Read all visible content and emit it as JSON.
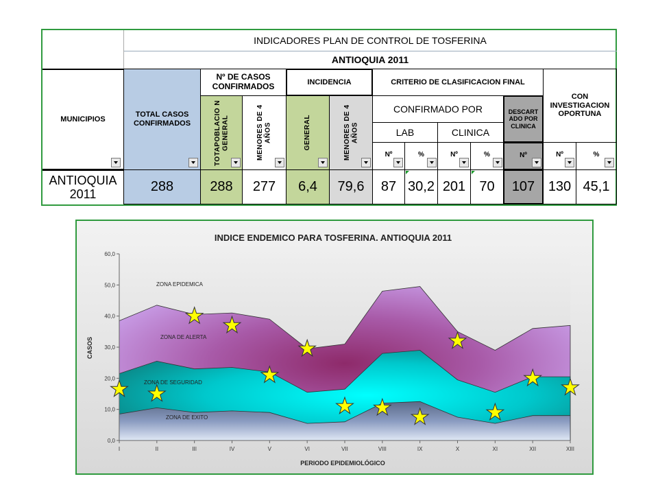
{
  "table": {
    "title": "INDICADORES PLAN  DE CONTROL  DE TOSFERINA",
    "subtitle": "ANTIOQUIA 2011",
    "headers": {
      "municipios": "MUNICIPIOS",
      "total": "TOTAL CASOS CONFIRMADOS",
      "num_casos": "Nº DE CASOS CONFIRMADOS",
      "incidencia": "INCIDENCIA",
      "criterio": "CRITERIO DE CLASIFICACION  FINAL",
      "con_invest": "CON INVESTIGACION OPORTUNA",
      "confirmado_por": "CONFIRMADO POR",
      "descartado": "DESCART ADO POR CLINICA",
      "lab": "LAB",
      "clinica": "CLINICA",
      "totapoblacion": "TOTAPOBLACIO N GENERAL",
      "menores_a": "MENORES DE 4 AÑOS",
      "general": "GENERAL",
      "menores_b": "MENORES DE 4 AÑOS",
      "n": "Nº",
      "pct": "%"
    },
    "row": {
      "municipio": "ANTIOQUIA 2011",
      "total": "288",
      "totapoblacion": "288",
      "menores": "277",
      "inc_general": "6,4",
      "inc_menores": "79,6",
      "lab_n": "87",
      "lab_pct": "30,2",
      "clin_n": "201",
      "clin_pct": "70",
      "descartado_n": "107",
      "invest_n": "130",
      "invest_pct": "45,1"
    },
    "colors": {
      "blue": "#b8cce4",
      "green": "#c3d69b",
      "gray": "#d9d9d9",
      "darkgray": "#a6a6a6"
    }
  },
  "chart_data": {
    "type": "area",
    "title": "INDICE ENDEMICO PARA TOSFERINA.  ANTIOQUIA 2011",
    "xlabel": "PERIODO EPIDEMIOLÓGICO",
    "ylabel": "CASOS",
    "ylim": [
      0,
      60
    ],
    "yticks": [
      "0,0",
      "10,0",
      "20,0",
      "30,0",
      "40,0",
      "50,0",
      "60,0"
    ],
    "categories": [
      "I",
      "II",
      "III",
      "IV",
      "V",
      "VI",
      "VII",
      "VIII",
      "IX",
      "X",
      "XI",
      "XII",
      "XIII"
    ],
    "zone_labels": [
      "ZONA EPIDEMICA",
      "ZONA DE ALERTA",
      "ZONA DE SEGURIDAD",
      "ZONA DE EXITO"
    ],
    "series": [
      {
        "values": [
          38.5,
          43.5,
          40.5,
          41,
          39,
          29.5,
          31,
          48,
          49.5,
          35,
          29,
          36,
          37
        ],
        "color": "#c9a0e8"
      },
      {
        "values": [
          21.5,
          25.5,
          23,
          23.5,
          22,
          15.5,
          16.5,
          28,
          29,
          19.5,
          15.5,
          20.5,
          20.5
        ],
        "color": "#00e0e0"
      },
      {
        "values": [
          8.5,
          10.5,
          9,
          9.5,
          9,
          5.5,
          6,
          12,
          12.5,
          7.5,
          5.5,
          8,
          8
        ],
        "color": "#7f8fb0"
      }
    ],
    "points": [
      16.5,
      15,
      40,
      37,
      21,
      29.5,
      11,
      10.5,
      7.5,
      32,
      9,
      20,
      17
    ],
    "grid": false
  }
}
